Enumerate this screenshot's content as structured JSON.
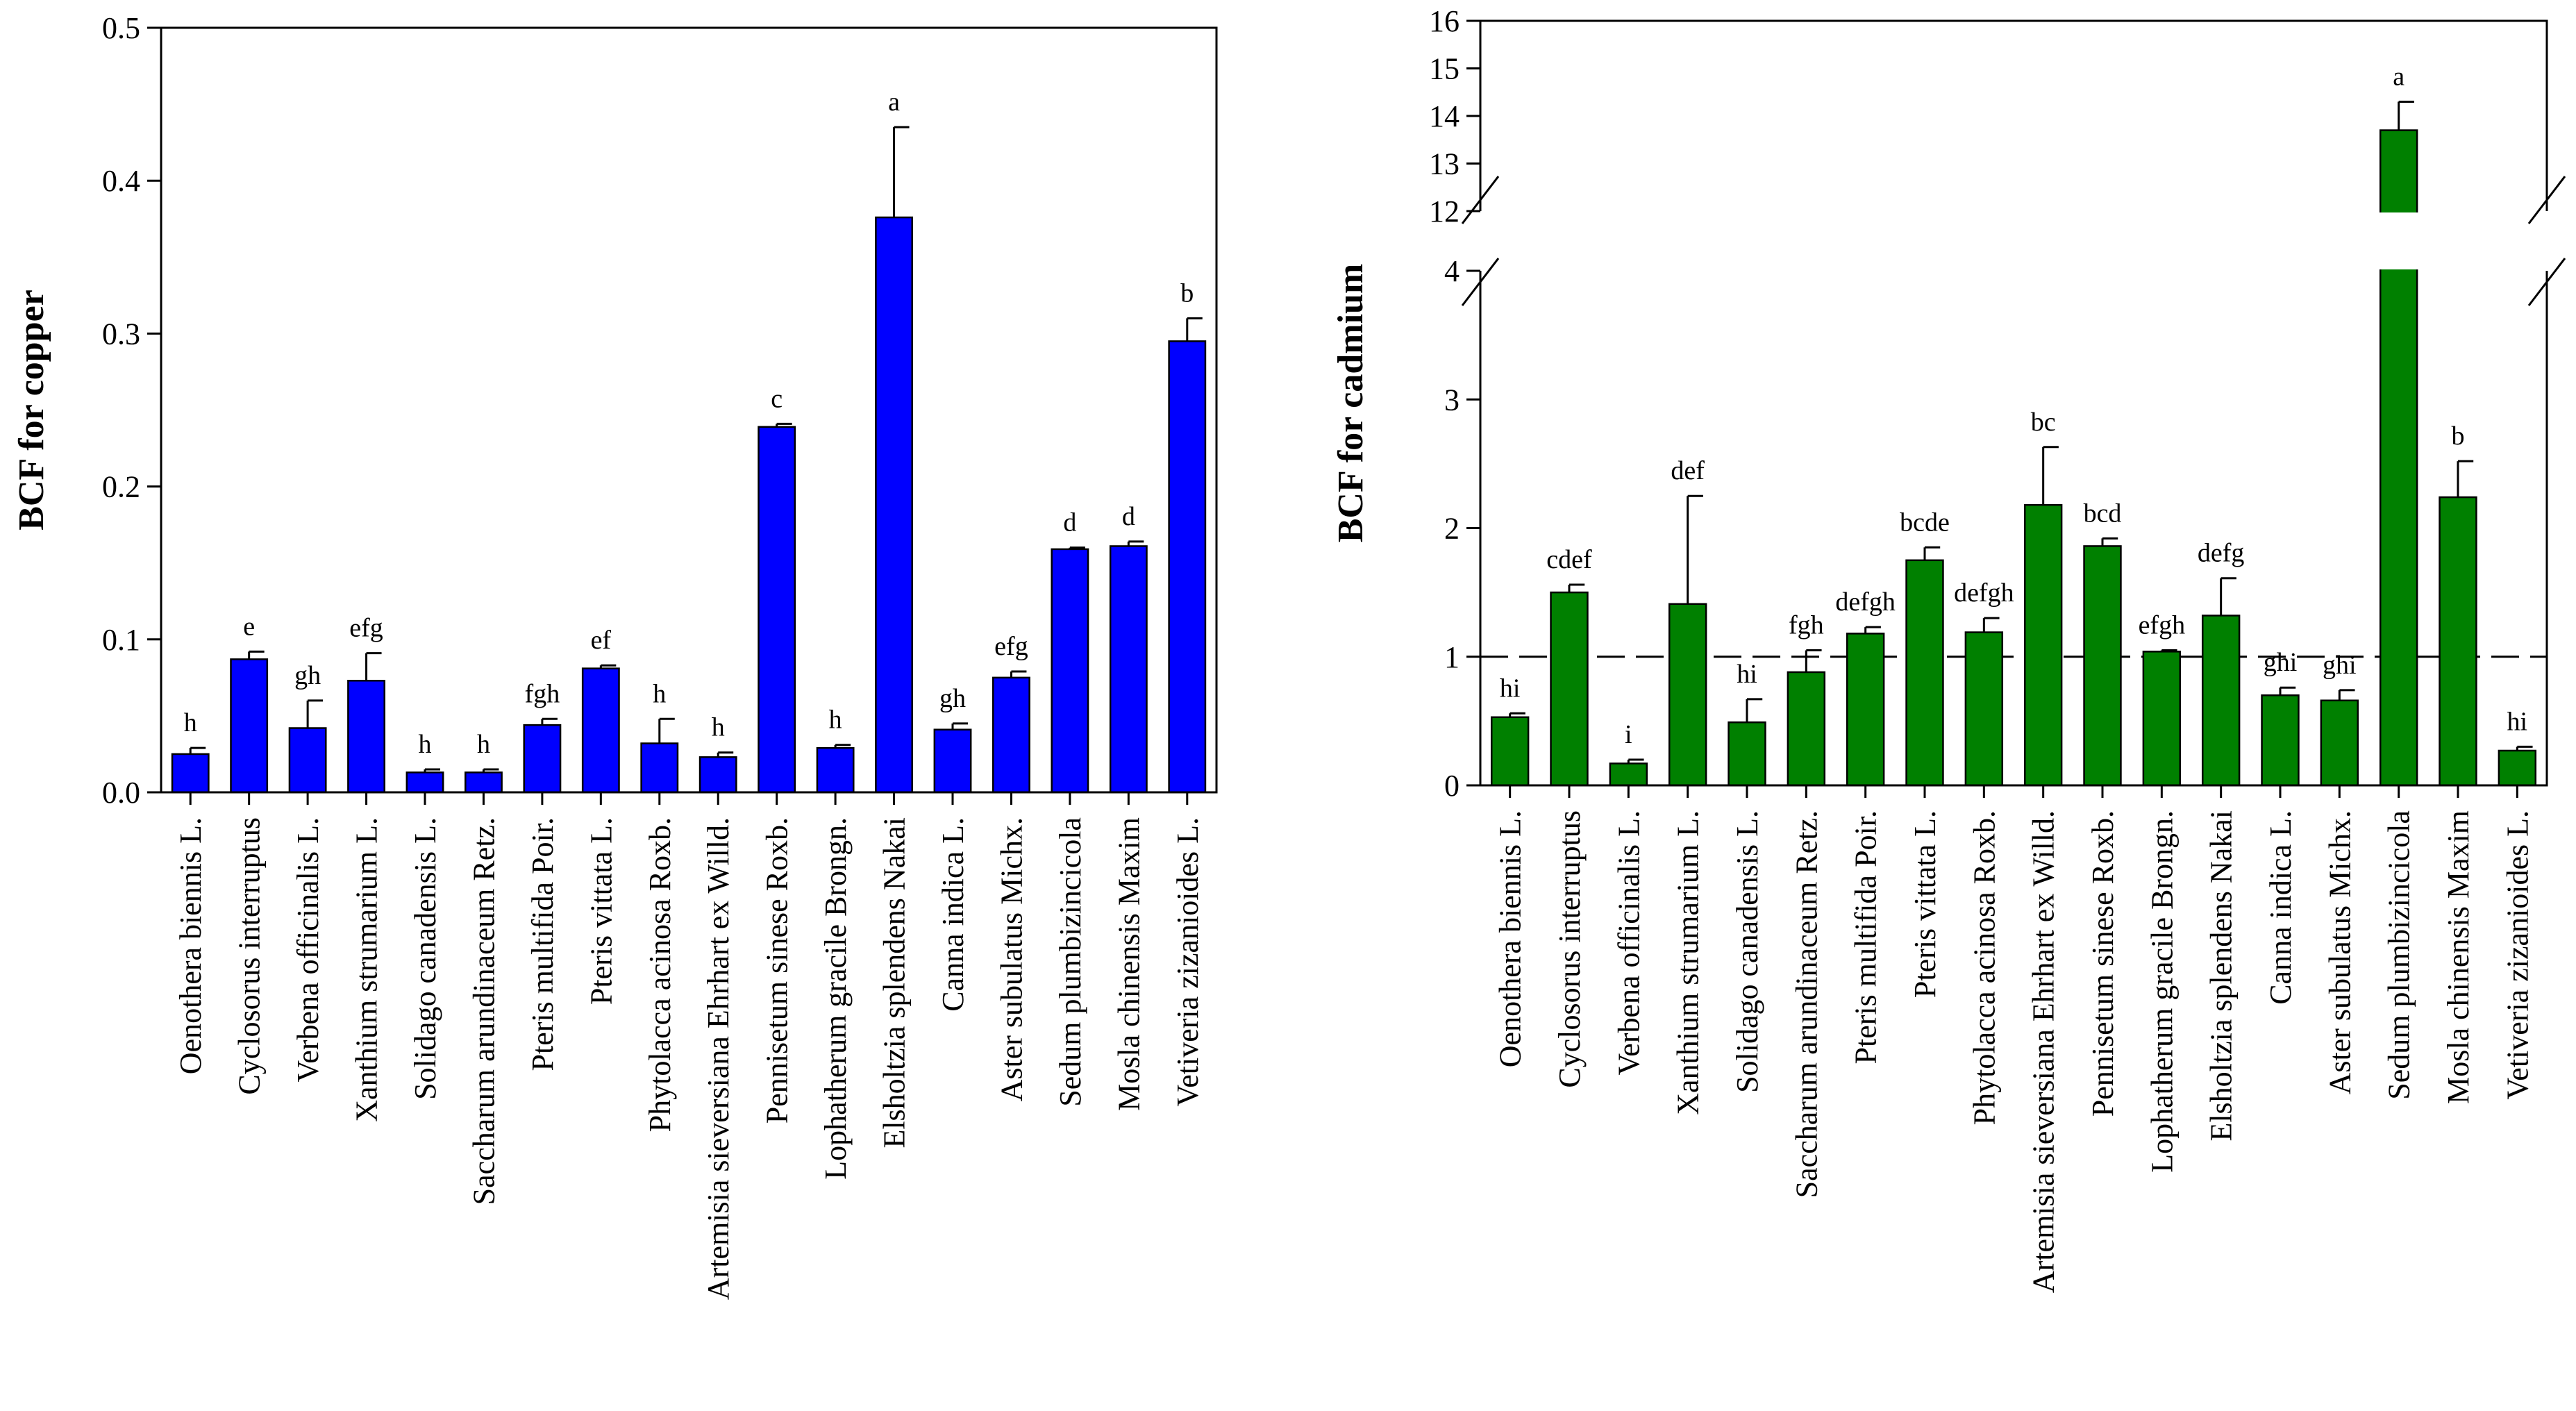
{
  "chart_data": [
    {
      "type": "bar",
      "ylabel": "BCF for copper",
      "xlabel": "",
      "ylim": [
        0,
        0.5
      ],
      "yticks": [
        0.0,
        0.1,
        0.2,
        0.3,
        0.4,
        0.5
      ],
      "ytick_labels": [
        "0.0",
        "0.1",
        "0.2",
        "0.3",
        "0.4",
        "0.5"
      ],
      "bar_color": "#0000ff",
      "categories": [
        "Oenothera biennis L.",
        "Cyclosorus interruptus",
        "Verbena officinalis L.",
        "Xanthium strumarium L.",
        "Solidago canadensis L.",
        "Saccharum arundinaceum Retz.",
        "Pteris multifida Poir.",
        "Pteris vittata L.",
        "Phytolacca acinosa Roxb.",
        "Artemisia sieversiana Ehrhart ex Willd.",
        "Pennisetum sinese Roxb.",
        "Lophatherum gracile Brongn.",
        "Elsholtzia splendens Nakai",
        "Canna indica L.",
        "Aster subulatus Michx.",
        "Sedum plumbizincicola",
        "Mosla chinensis Maxim",
        "Vetiveria zizanioides L."
      ],
      "values": [
        0.025,
        0.087,
        0.042,
        0.073,
        0.013,
        0.013,
        0.044,
        0.081,
        0.032,
        0.023,
        0.239,
        0.029,
        0.376,
        0.041,
        0.075,
        0.159,
        0.161,
        0.295
      ],
      "errors": [
        0.004,
        0.005,
        0.018,
        0.018,
        0.002,
        0.002,
        0.004,
        0.002,
        0.016,
        0.003,
        0.002,
        0.002,
        0.059,
        0.004,
        0.004,
        0.001,
        0.003,
        0.015
      ],
      "significance": [
        "h",
        "e",
        "gh",
        "efg",
        "h",
        "h",
        "fgh",
        "ef",
        "h",
        "h",
        "c",
        "h",
        "a",
        "gh",
        "efg",
        "d",
        "d",
        "b"
      ]
    },
    {
      "type": "bar",
      "ylabel": "BCF for cadmium",
      "xlabel": "",
      "ylim": [
        0,
        16
      ],
      "axis_break": [
        4,
        12
      ],
      "yticks": [
        0,
        1,
        2,
        3,
        4,
        12,
        13,
        14,
        15,
        16
      ],
      "ytick_labels": [
        "0",
        "1",
        "2",
        "3",
        "4",
        "12",
        "13",
        "14",
        "15",
        "16"
      ],
      "reference_line": 1,
      "bar_color": "#008000",
      "categories": [
        "Oenothera biennis L.",
        "Cyclosorus interruptus",
        "Verbena officinalis L.",
        "Xanthium strumarium L.",
        "Solidago canadensis L.",
        "Saccharum arundinaceum Retz.",
        "Pteris multifida Poir.",
        "Pteris vittata L.",
        "Phytolacca acinosa Roxb.",
        "Artemisia sieversiana Ehrhart ex Willd.",
        "Pennisetum sinese Roxb.",
        "Lophatherum gracile Brongn.",
        "Elsholtzia splendens Nakai",
        "Canna indica L.",
        "Aster subulatus Michx.",
        "Sedum plumbizincicola",
        "Mosla chinensis Maxim",
        "Vetiveria zizanioides L."
      ],
      "values": [
        0.53,
        1.5,
        0.17,
        1.41,
        0.49,
        0.88,
        1.18,
        1.75,
        1.19,
        2.18,
        1.86,
        1.04,
        1.32,
        0.7,
        0.66,
        13.7,
        2.24,
        0.27
      ],
      "errors": [
        0.03,
        0.06,
        0.03,
        0.84,
        0.18,
        0.17,
        0.05,
        0.1,
        0.11,
        0.45,
        0.06,
        0.01,
        0.29,
        0.06,
        0.08,
        0.6,
        0.28,
        0.03
      ],
      "significance": [
        "hi",
        "cdef",
        "i",
        "def",
        "hi",
        "fgh",
        "defgh",
        "bcde",
        "defgh",
        "bc",
        "bcd",
        "efgh",
        "defg",
        "ghi",
        "ghi",
        "a",
        "b",
        "hi"
      ]
    }
  ]
}
